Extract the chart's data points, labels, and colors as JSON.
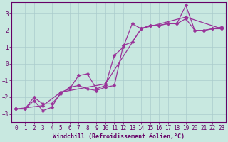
{
  "background_color": "#c8e8e0",
  "line_color": "#993399",
  "grid_color": "#aacccc",
  "axis_color": "#660066",
  "xlabel": "Windchill (Refroidissement éolien,°C)",
  "xlim": [
    -0.5,
    23.5
  ],
  "ylim": [
    -3.5,
    3.7
  ],
  "yticks": [
    -3,
    -2,
    -1,
    0,
    1,
    2,
    3
  ],
  "xticks": [
    0,
    1,
    2,
    3,
    4,
    5,
    6,
    7,
    8,
    9,
    10,
    11,
    12,
    13,
    14,
    15,
    16,
    17,
    18,
    19,
    20,
    21,
    22,
    23
  ],
  "line1_x": [
    0,
    1,
    2,
    3,
    4,
    5,
    6,
    7,
    8,
    9,
    10,
    11,
    12,
    13,
    14,
    15,
    16,
    17,
    18,
    19,
    20,
    21,
    22,
    23
  ],
  "line1_y": [
    -2.7,
    -2.7,
    -2.2,
    -2.8,
    -2.6,
    -1.7,
    -1.5,
    -0.7,
    -0.6,
    -1.5,
    -1.3,
    0.5,
    1.0,
    2.4,
    2.1,
    2.3,
    2.3,
    2.4,
    2.4,
    3.5,
    2.0,
    2.0,
    2.1,
    2.2
  ],
  "line2_x": [
    0,
    1,
    2,
    3,
    4,
    5,
    6,
    7,
    8,
    9,
    10,
    11,
    12,
    13,
    14,
    15,
    16,
    17,
    18,
    19,
    20,
    21,
    22,
    23
  ],
  "line2_y": [
    -2.7,
    -2.7,
    -2.0,
    -2.4,
    -2.4,
    -1.8,
    -1.4,
    -1.3,
    -1.5,
    -1.6,
    -1.4,
    -1.3,
    1.1,
    1.3,
    2.1,
    2.3,
    2.3,
    2.4,
    2.4,
    2.7,
    2.0,
    2.0,
    2.1,
    2.1
  ],
  "line3_x": [
    0,
    3,
    5,
    10,
    14,
    19,
    23
  ],
  "line3_y": [
    -2.7,
    -2.5,
    -1.7,
    -1.2,
    2.1,
    2.8,
    2.1
  ],
  "marker": "D",
  "markersize": 2.5,
  "linewidth": 0.9,
  "tick_fontsize": 5.5,
  "xlabel_fontsize": 6.0
}
